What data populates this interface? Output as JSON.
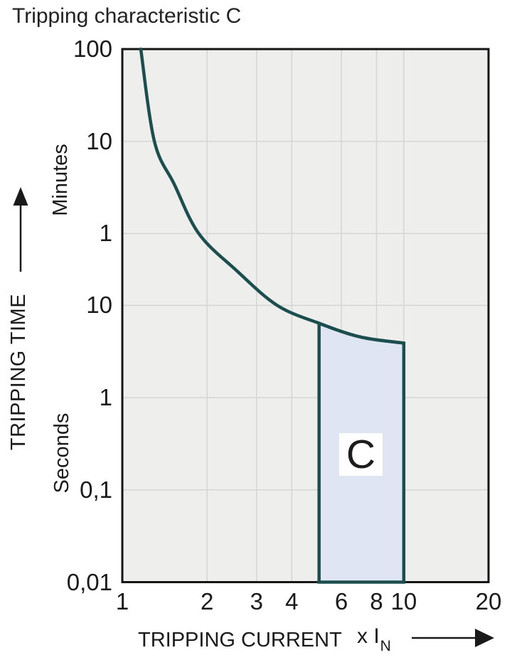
{
  "chart_data": {
    "type": "line",
    "title": "Tripping characteristic C",
    "x_axis": {
      "label": "TRIPPING CURRENT",
      "unit_prefix": "x I",
      "unit_sub": "N",
      "scale": "log",
      "range": [
        1,
        20
      ],
      "ticks": [
        {
          "label": "1",
          "value": 1
        },
        {
          "label": "2",
          "value": 2
        },
        {
          "label": "3",
          "value": 3
        },
        {
          "label": "4",
          "value": 4
        },
        {
          "label": "6",
          "value": 6
        },
        {
          "label": "8",
          "value": 8
        },
        {
          "label": "10",
          "value": 10
        },
        {
          "label": "20",
          "value": 20
        }
      ]
    },
    "y_axis": {
      "label": "TRIPPING TIME",
      "scale": "log",
      "range_seconds": [
        0.01,
        6000
      ],
      "unit_sections": [
        {
          "label": "Minutes"
        },
        {
          "label": "Seconds"
        }
      ],
      "ticks": [
        {
          "label": "100",
          "unit": "minutes",
          "value_seconds": 6000
        },
        {
          "label": "10",
          "unit": "minutes",
          "value_seconds": 600
        },
        {
          "label": "1",
          "unit": "minutes",
          "value_seconds": 60
        },
        {
          "label": "10",
          "unit": "seconds",
          "value_seconds": 10
        },
        {
          "label": "1",
          "unit": "seconds",
          "value_seconds": 1
        },
        {
          "label": "0,1",
          "unit": "seconds",
          "value_seconds": 0.1
        },
        {
          "label": "0,01",
          "unit": "seconds",
          "value_seconds": 0.01
        }
      ]
    },
    "grid": {
      "x_values": [
        2,
        3,
        4,
        6,
        8,
        10
      ],
      "y_values_seconds": [
        600,
        60,
        10,
        1,
        0.1
      ]
    },
    "series": [
      {
        "name": "C tripping characteristic curve",
        "points_v_xIN_t_seconds": [
          [
            1.163,
            6000
          ],
          [
            1.3,
            600
          ],
          [
            1.53,
            205
          ],
          [
            1.87,
            60
          ],
          [
            2.54,
            24
          ],
          [
            3.55,
            10
          ],
          [
            5.0,
            6.4
          ],
          [
            7.0,
            4.55
          ],
          [
            10.0,
            3.9
          ]
        ]
      }
    ],
    "trip_zone": {
      "label": "C",
      "v_min": 5,
      "v_max": 10,
      "t_bottom_seconds": 0.01,
      "t_top_follows_curve": true
    },
    "colors": {
      "curve": "#1d4e4f",
      "zone_fill": "#dfe5f2",
      "plot_bg": "#eeeeec",
      "grid": "#d5d5d4",
      "border": "#151515",
      "text": "#1a1a1a"
    }
  }
}
